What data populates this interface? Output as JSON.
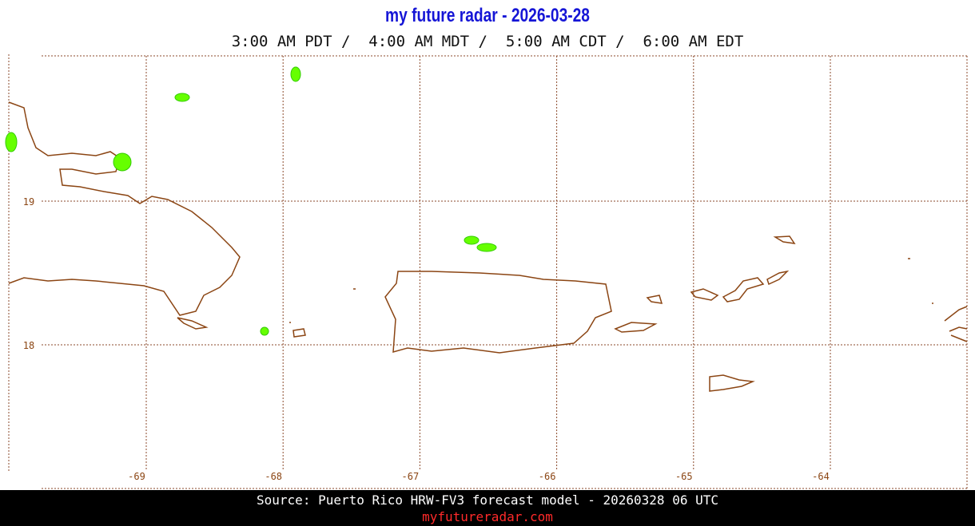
{
  "header": {
    "title": "my future radar - 2026-03-28",
    "times": "3:00 AM PDT /  4:00 AM MDT /  5:00 AM CDT /  6:00 AM EDT"
  },
  "map": {
    "lon_labels": [
      "-69",
      "-68",
      "-67",
      "-66",
      "-65",
      "-64"
    ],
    "lat_labels": [
      "19",
      "18"
    ]
  },
  "footer": {
    "source": "Source: Puerto Rico HRW-FV3 forecast model - 20260328 06 UTC",
    "site": "myfutureradar.com"
  }
}
